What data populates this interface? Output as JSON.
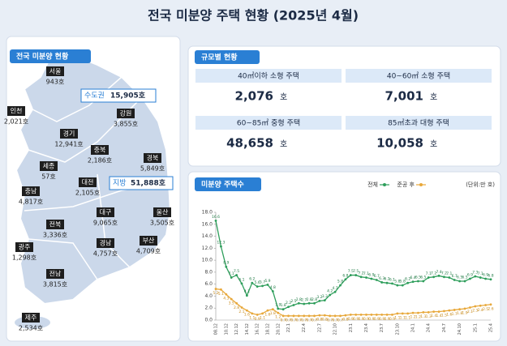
{
  "header": {
    "title": "전국 미분양 주택 현황 (2025년 4월)"
  },
  "map": {
    "tab": "전국 미분양 현황",
    "summary": [
      {
        "name": "수도권",
        "value": "15,905호"
      },
      {
        "name": "지방",
        "value": "51,888호"
      }
    ],
    "regions": [
      {
        "name": "서울",
        "value": "943호"
      },
      {
        "name": "인천",
        "value": "2,021호"
      },
      {
        "name": "경기",
        "value": "12,941호"
      },
      {
        "name": "강원",
        "value": "3,855호"
      },
      {
        "name": "충북",
        "value": "2,186호"
      },
      {
        "name": "세종",
        "value": "57호"
      },
      {
        "name": "충남",
        "value": "4,817호"
      },
      {
        "name": "대전",
        "value": "2,105호"
      },
      {
        "name": "경북",
        "value": "5,849호"
      },
      {
        "name": "대구",
        "value": "9,065호"
      },
      {
        "name": "울산",
        "value": "3,505호"
      },
      {
        "name": "전북",
        "value": "3,336호"
      },
      {
        "name": "경남",
        "value": "4,757호"
      },
      {
        "name": "부산",
        "value": "4,709호"
      },
      {
        "name": "광주",
        "value": "1,298호"
      },
      {
        "name": "전남",
        "value": "3,815호"
      },
      {
        "name": "제주",
        "value": "2,534호"
      }
    ]
  },
  "size_table": {
    "tab": "규모별 현황",
    "cells": [
      {
        "label": "40㎡이하 소형 주택",
        "value": "2,076",
        "unit": "호"
      },
      {
        "label": "40~60㎡ 소형 주택",
        "value": "7,001",
        "unit": "호"
      },
      {
        "label": "60~85㎡ 중형 주택",
        "value": "48,658",
        "unit": "호"
      },
      {
        "label": "85㎡초과 대형 주택",
        "value": "10,058",
        "unit": "호"
      }
    ]
  },
  "chart_data": {
    "type": "line",
    "title": "미분양 주택수",
    "unit_note": "(단위:만 호)",
    "grid": false,
    "categories": [
      "08.12",
      null,
      "10.12",
      null,
      "12.12",
      null,
      "14.12",
      null,
      "16.12",
      null,
      "18.12",
      null,
      "20.12",
      null,
      "22.1",
      null,
      null,
      "22.4",
      null,
      null,
      "22.7",
      null,
      null,
      "22.10",
      null,
      null,
      "23.1",
      null,
      null,
      "23.4",
      null,
      null,
      "23.7",
      null,
      null,
      "23.10",
      null,
      null,
      "24.1",
      null,
      null,
      "24.4",
      null,
      null,
      "24.7",
      null,
      null,
      "24.10",
      null,
      null,
      "25.1",
      null,
      null,
      "25.4"
    ],
    "series": [
      {
        "name": "전체",
        "color": "#2e9e5b",
        "values": [
          16.6,
          12.3,
          8.9,
          7.1,
          7.5,
          6.1,
          4.1,
          6.2,
          5.6,
          5.7,
          5.9,
          4.8,
          1.9,
          1.8,
          2.2,
          2.5,
          2.8,
          2.7,
          2.8,
          2.8,
          3.2,
          3.3,
          4.2,
          4.7,
          5.8,
          6.8,
          7.5,
          7.5,
          7.2,
          7.1,
          6.9,
          6.7,
          6.3,
          6.2,
          6.1,
          5.8,
          5.8,
          6.2,
          6.4,
          6.5,
          6.5,
          7.1,
          7.2,
          7.4,
          7.2,
          7.1,
          6.7,
          6.5,
          6.5,
          6.9,
          7.3,
          7.1,
          6.9,
          6.8
        ]
      },
      {
        "name": "준공 후",
        "color": "#e8a83a",
        "values": [
          5.2,
          5.1,
          4.3,
          3.5,
          2.8,
          2.1,
          1.6,
          1.1,
          0.9,
          1.1,
          1.6,
          1.8,
          1.2,
          0.7,
          0.7,
          0.7,
          0.7,
          0.7,
          0.7,
          0.7,
          0.8,
          0.8,
          0.7,
          0.7,
          0.7,
          0.8,
          0.9,
          0.9,
          0.9,
          0.9,
          0.9,
          0.9,
          0.9,
          0.9,
          0.9,
          1.1,
          1.1,
          1.1,
          1.2,
          1.2,
          1.3,
          1.3,
          1.4,
          1.4,
          1.5,
          1.6,
          1.7,
          1.8,
          1.9,
          2.1,
          2.3,
          2.4,
          2.5,
          2.6
        ]
      }
    ],
    "ylim": [
      0,
      18
    ],
    "yticks": [
      {
        "value": 0,
        "label": "0.0"
      },
      {
        "value": 2,
        "label": "2.0"
      },
      {
        "value": 4,
        "label": "4.0"
      },
      {
        "value": 6,
        "label": "6.0"
      },
      {
        "value": 8,
        "label": "8.0"
      },
      {
        "value": 10,
        "label": "10.0"
      },
      {
        "value": 12,
        "label": "12.0"
      },
      {
        "value": 14,
        "label": "14.0"
      },
      {
        "value": 16,
        "label": "16.0"
      },
      {
        "value": 18,
        "label": "18.0"
      }
    ]
  }
}
